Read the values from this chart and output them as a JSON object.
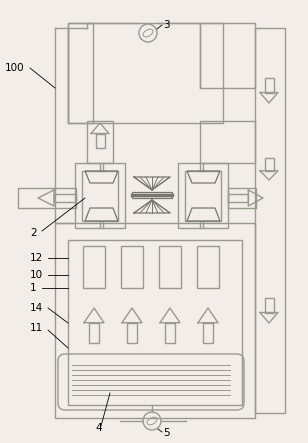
{
  "bg_color": "#f2ede8",
  "lc": "#999990",
  "dc": "#777770",
  "figsize": [
    3.08,
    4.43
  ],
  "dpi": 100
}
